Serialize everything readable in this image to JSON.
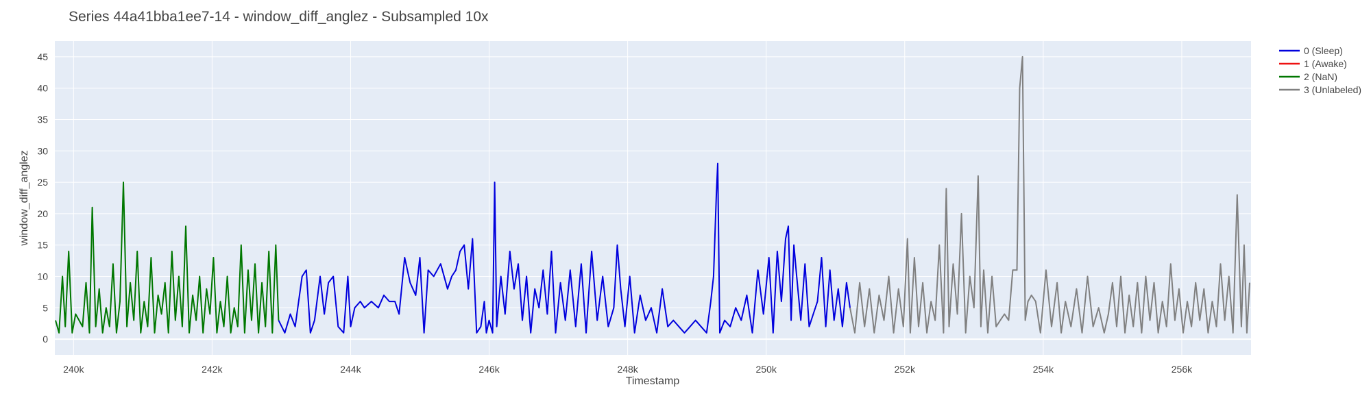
{
  "chart_data": {
    "type": "line",
    "title": "Series 44a41bba1ee7-14 - window_diff_anglez - Subsampled 10x",
    "xlabel": "Timestamp",
    "ylabel": "window_diff_anglez",
    "xlim": [
      239730,
      257000
    ],
    "ylim": [
      -2.5,
      47.5
    ],
    "x_ticks": [
      240000,
      242000,
      244000,
      246000,
      248000,
      250000,
      252000,
      254000,
      256000
    ],
    "x_tick_labels": [
      "240k",
      "242k",
      "244k",
      "246k",
      "248k",
      "250k",
      "252k",
      "254k",
      "256k"
    ],
    "y_ticks": [
      0,
      5,
      10,
      15,
      20,
      25,
      30,
      35,
      40,
      45
    ],
    "y_tick_labels": [
      "0",
      "5",
      "10",
      "15",
      "20",
      "25",
      "30",
      "35",
      "40",
      "45"
    ],
    "grid": true,
    "legend_position": "top-right",
    "series": [
      {
        "name": "0 (Sleep)",
        "color": "#0000dd",
        "x": [
          242960,
          243050,
          243130,
          243200,
          243300,
          243360,
          243420,
          243480,
          243560,
          243620,
          243680,
          243750,
          243820,
          243900,
          243960,
          244000,
          244060,
          244140,
          244200,
          244300,
          244400,
          244480,
          244560,
          244640,
          244700,
          244780,
          244860,
          244940,
          245000,
          245060,
          245120,
          245200,
          245300,
          245400,
          245460,
          245520,
          245580,
          245640,
          245700,
          245760,
          245820,
          245880,
          245930,
          245960,
          246000,
          246050,
          246080,
          246110,
          246170,
          246230,
          246300,
          246360,
          246420,
          246480,
          246540,
          246600,
          246660,
          246720,
          246780,
          246840,
          246900,
          246960,
          247030,
          247100,
          247170,
          247250,
          247330,
          247400,
          247480,
          247560,
          247640,
          247720,
          247800,
          247850,
          247900,
          247960,
          248030,
          248100,
          248180,
          248260,
          248340,
          248420,
          248500,
          248580,
          248660,
          248740,
          248820,
          248900,
          248980,
          249060,
          249140,
          249200,
          249240,
          249280,
          249300,
          249330,
          249400,
          249480,
          249560,
          249640,
          249720,
          249800,
          249880,
          249960,
          250040,
          250100,
          250160,
          250220,
          250280,
          250320,
          250360,
          250400,
          250440,
          250500,
          250560,
          250620,
          250680,
          250740,
          250800,
          250860,
          250920,
          250980,
          251040,
          251100,
          251160,
          251210
        ],
        "values": [
          3,
          1,
          4,
          2,
          10,
          11,
          1,
          3,
          10,
          4,
          9,
          10,
          2,
          1,
          10,
          2,
          5,
          6,
          5,
          6,
          5,
          7,
          6,
          6,
          4,
          13,
          9,
          7,
          13,
          1,
          11,
          10,
          12,
          8,
          10,
          11,
          14,
          15,
          8,
          16,
          1,
          2,
          6,
          1,
          3,
          1,
          25,
          2,
          10,
          4,
          14,
          8,
          12,
          3,
          10,
          1,
          8,
          5,
          11,
          4,
          14,
          1,
          9,
          3,
          11,
          2,
          12,
          1,
          14,
          3,
          10,
          2,
          5,
          15,
          8,
          2,
          10,
          1,
          7,
          3,
          5,
          1,
          8,
          2,
          3,
          2,
          1,
          2,
          3,
          2,
          1,
          6,
          10,
          23,
          28,
          1,
          3,
          2,
          5,
          3,
          7,
          1,
          11,
          4,
          13,
          1,
          14,
          6,
          16,
          18,
          3,
          15,
          10,
          3,
          12,
          2,
          4,
          6,
          13,
          2,
          11,
          3,
          8,
          2,
          9,
          5
        ]
      },
      {
        "name": "1 (Awake)",
        "color": "#ee1111",
        "x": [],
        "values": []
      },
      {
        "name": "2 (NaN)",
        "color": "#007700",
        "x": [
          239740,
          239790,
          239840,
          239880,
          239930,
          239980,
          240030,
          240080,
          240130,
          240180,
          240230,
          240270,
          240320,
          240370,
          240420,
          240470,
          240520,
          240570,
          240620,
          240670,
          240720,
          240770,
          240820,
          240870,
          240920,
          240970,
          241020,
          241070,
          241120,
          241170,
          241220,
          241270,
          241320,
          241370,
          241420,
          241470,
          241520,
          241570,
          241620,
          241670,
          241720,
          241770,
          241820,
          241870,
          241920,
          241970,
          242020,
          242070,
          242120,
          242170,
          242220,
          242270,
          242320,
          242370,
          242420,
          242470,
          242520,
          242570,
          242620,
          242670,
          242720,
          242770,
          242820,
          242870,
          242920,
          242960
        ],
        "values": [
          3,
          1,
          10,
          2,
          14,
          1,
          4,
          3,
          2,
          9,
          1,
          21,
          2,
          8,
          1,
          5,
          2,
          12,
          1,
          6,
          25,
          2,
          9,
          3,
          14,
          1,
          6,
          2,
          13,
          1,
          7,
          4,
          9,
          1,
          14,
          3,
          10,
          2,
          18,
          1,
          7,
          3,
          10,
          1,
          8,
          4,
          13,
          1,
          6,
          2,
          10,
          1,
          5,
          2,
          15,
          1,
          11,
          3,
          12,
          1,
          9,
          2,
          14,
          1,
          15,
          3
        ]
      },
      {
        "name": "3 (Unlabeled)",
        "color": "#808080",
        "x": [
          251210,
          251280,
          251350,
          251420,
          251490,
          251560,
          251630,
          251700,
          251770,
          251840,
          251910,
          251980,
          252040,
          252080,
          252140,
          252200,
          252260,
          252320,
          252380,
          252440,
          252500,
          252560,
          252600,
          252640,
          252700,
          252760,
          252820,
          252880,
          252940,
          253000,
          253060,
          253100,
          253140,
          253200,
          253260,
          253320,
          253380,
          253440,
          253500,
          253560,
          253620,
          253660,
          253700,
          253740,
          253780,
          253830,
          253890,
          253960,
          254040,
          254120,
          254200,
          254260,
          254320,
          254400,
          254480,
          254560,
          254640,
          254720,
          254800,
          254880,
          254940,
          255000,
          255060,
          255120,
          255180,
          255240,
          255300,
          255360,
          255420,
          255480,
          255540,
          255600,
          255660,
          255720,
          255780,
          255840,
          255900,
          255960,
          256020,
          256080,
          256140,
          256200,
          256260,
          256320,
          256380,
          256440,
          256500,
          256560,
          256620,
          256680,
          256740,
          256800,
          256860,
          256900,
          256940,
          256980
        ],
        "values": [
          5,
          1,
          9,
          2,
          8,
          1,
          7,
          3,
          10,
          1,
          8,
          2,
          16,
          1,
          13,
          2,
          9,
          1,
          6,
          3,
          15,
          1,
          24,
          2,
          12,
          4,
          20,
          1,
          10,
          5,
          26,
          2,
          11,
          1,
          10,
          2,
          3,
          4,
          3,
          11,
          11,
          40,
          45,
          3,
          6,
          7,
          6,
          1,
          11,
          2,
          9,
          1,
          6,
          2,
          8,
          1,
          10,
          2,
          5,
          1,
          4,
          9,
          2,
          10,
          1,
          7,
          2,
          9,
          1,
          10,
          3,
          9,
          1,
          6,
          2,
          12,
          3,
          8,
          1,
          6,
          2,
          9,
          3,
          8,
          1,
          6,
          2,
          12,
          3,
          10,
          1,
          23,
          2,
          15,
          1,
          9
        ]
      }
    ]
  }
}
